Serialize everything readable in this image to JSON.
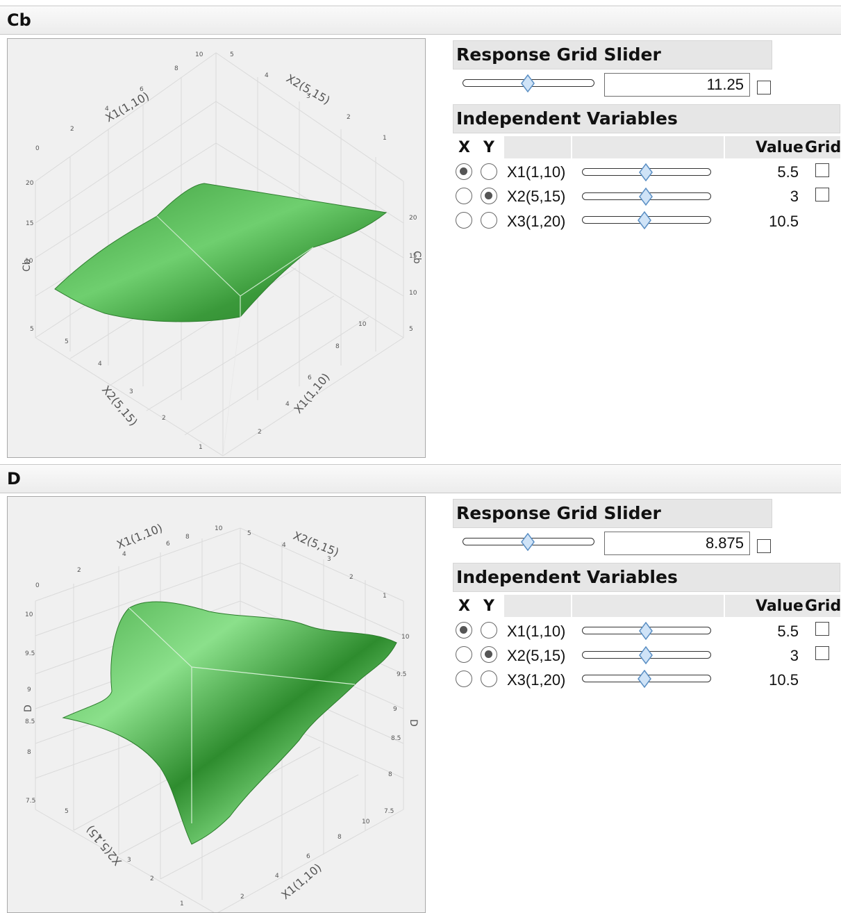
{
  "colors": {
    "surface_light": "#7fd67f",
    "surface_dark": "#2f8f2f",
    "grid_line": "#d8d8d8",
    "thumb_fill": "#cfe3f7",
    "thumb_stroke": "#5b8fc4"
  },
  "sections": [
    {
      "title": "Cb",
      "plot": {
        "z_axis_label": "Cb",
        "x1_axis_label": "X1(1,10)",
        "x2_axis_label": "X2(5,15)",
        "left_z_ticks": [
          "5",
          "10",
          "15",
          "20"
        ],
        "right_z_ticks": [
          "5",
          "10",
          "15",
          "20"
        ],
        "top_x1_ticks": [
          "0",
          "2",
          "4",
          "6",
          "8",
          "10"
        ],
        "top_x2_ticks": [
          "5",
          "4",
          "3",
          "2",
          "1"
        ],
        "bottom_x2_ticks": [
          "5",
          "4",
          "3",
          "2",
          "1"
        ],
        "bottom_x1_ticks": [
          "10",
          "8",
          "6",
          "4",
          "2"
        ]
      },
      "response_grid": {
        "heading": "Response Grid Slider",
        "value": "11.25",
        "slider_fraction": 0.5
      },
      "independent": {
        "heading": "Independent Variables",
        "col_x": "X",
        "col_y": "Y",
        "col_value": "Value",
        "col_grid": "Grid",
        "rows": [
          {
            "label": "X1(1,10)",
            "value": "5.5",
            "x_selected": true,
            "y_selected": false,
            "grid_box": true,
            "slider_fraction": 0.5
          },
          {
            "label": "X2(5,15)",
            "value": "3",
            "x_selected": false,
            "y_selected": true,
            "grid_box": true,
            "slider_fraction": 0.5
          },
          {
            "label": "X3(1,20)",
            "value": "10.5",
            "x_selected": false,
            "y_selected": false,
            "grid_box": false,
            "slider_fraction": 0.5
          }
        ]
      }
    },
    {
      "title": "D",
      "plot": {
        "z_axis_label": "D",
        "x1_axis_label": "X1(1,10)",
        "x2_axis_label": "X2(5,15)",
        "left_z_ticks": [
          "7.5",
          "8",
          "8.5",
          "9",
          "9.5",
          "10"
        ],
        "right_z_ticks": [
          "7.5",
          "8",
          "8.5",
          "9",
          "9.5",
          "10"
        ],
        "top_x1_ticks": [
          "0",
          "2",
          "4",
          "6",
          "8",
          "10"
        ],
        "top_x2_ticks": [
          "5",
          "4",
          "3",
          "2",
          "1"
        ],
        "bottom_x2_ticks": [
          "5",
          "4",
          "3",
          "2",
          "1"
        ],
        "bottom_x1_ticks": [
          "10",
          "8",
          "6",
          "4",
          "2"
        ]
      },
      "response_grid": {
        "heading": "Response Grid Slider",
        "value": "8.875",
        "slider_fraction": 0.5
      },
      "independent": {
        "heading": "Independent Variables",
        "col_x": "X",
        "col_y": "Y",
        "col_value": "Value",
        "col_grid": "Grid",
        "rows": [
          {
            "label": "X1(1,10)",
            "value": "5.5",
            "x_selected": true,
            "y_selected": false,
            "grid_box": true,
            "slider_fraction": 0.5
          },
          {
            "label": "X2(5,15)",
            "value": "3",
            "x_selected": false,
            "y_selected": true,
            "grid_box": true,
            "slider_fraction": 0.5
          },
          {
            "label": "X3(1,20)",
            "value": "10.5",
            "x_selected": false,
            "y_selected": false,
            "grid_box": false,
            "slider_fraction": 0.5
          }
        ]
      }
    }
  ]
}
